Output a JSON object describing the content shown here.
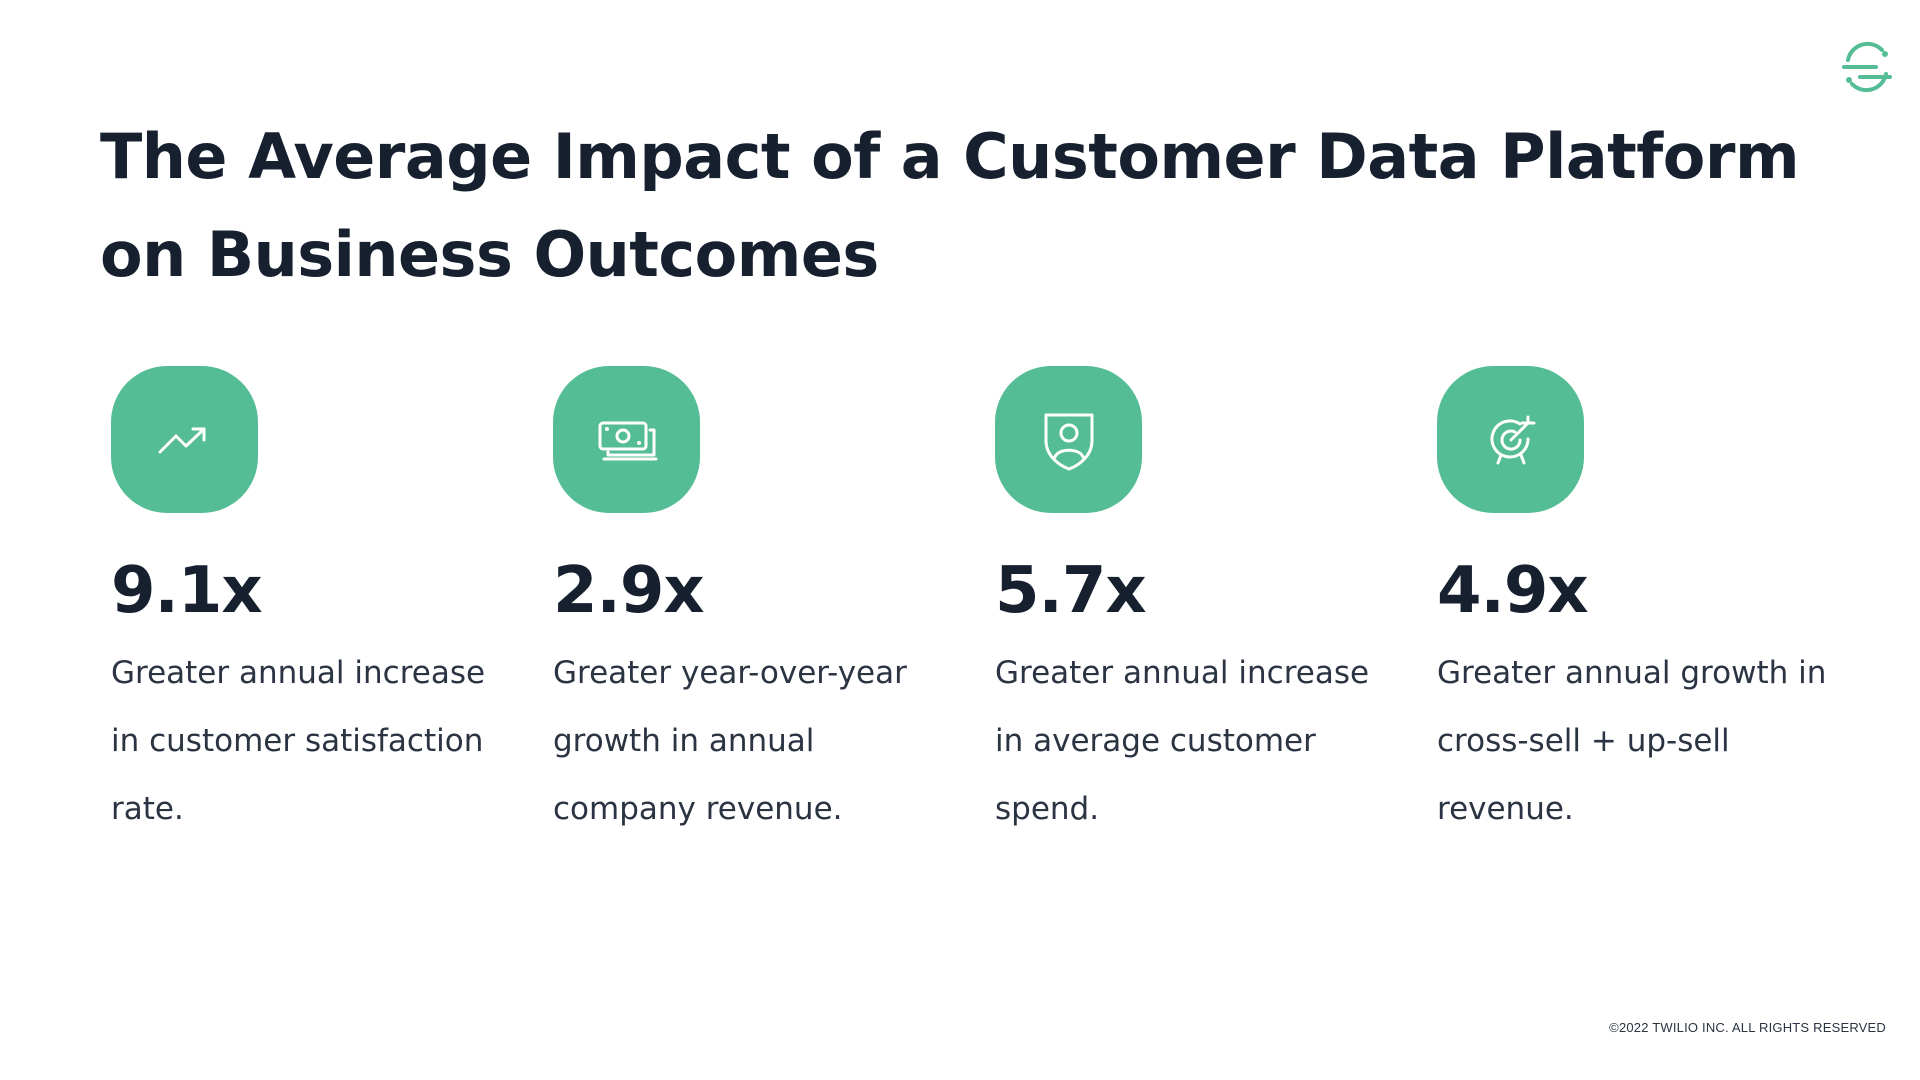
{
  "slide": {
    "title": "The Average Impact of a Customer Data Platform on Business Outcomes",
    "brand_icon": "segment-logo-icon",
    "accent_color": "#54bd95",
    "text_color": "#16202f",
    "copyright": "©2022 TWILIO INC. ALL RIGHTS RESERVED"
  },
  "stats": [
    {
      "icon": "trending-up-icon",
      "value": "9.1x",
      "description": "Greater annual increase in customer satisfaction rate."
    },
    {
      "icon": "money-bills-icon",
      "value": "2.9x",
      "description": "Greater year-over-year growth in annual company revenue."
    },
    {
      "icon": "user-shield-icon",
      "value": "5.7x",
      "description": "Greater annual increase in average customer spend."
    },
    {
      "icon": "target-arrow-icon",
      "value": "4.9x",
      "description": "Greater annual growth in cross-sell + up-sell revenue."
    }
  ]
}
